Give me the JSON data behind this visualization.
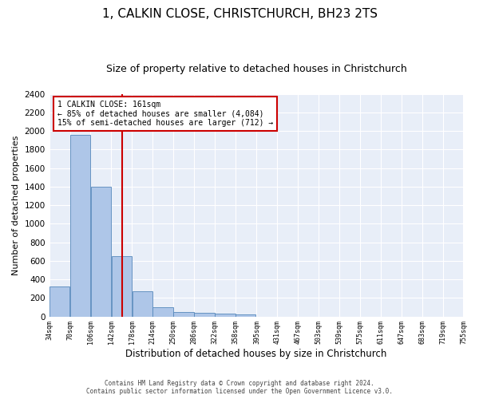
{
  "title1": "1, CALKIN CLOSE, CHRISTCHURCH, BH23 2TS",
  "title2": "Size of property relative to detached houses in Christchurch",
  "xlabel": "Distribution of detached houses by size in Christchurch",
  "ylabel": "Number of detached properties",
  "footer1": "Contains HM Land Registry data © Crown copyright and database right 2024.",
  "footer2": "Contains public sector information licensed under the Open Government Licence v3.0.",
  "annotation_line1": "1 CALKIN CLOSE: 161sqm",
  "annotation_line2": "← 85% of detached houses are smaller (4,084)",
  "annotation_line3": "15% of semi-detached houses are larger (712) →",
  "property_size": 161,
  "bar_edges": [
    34,
    70,
    106,
    142,
    178,
    214,
    250,
    286,
    322,
    358,
    395,
    431,
    467,
    503,
    539,
    575,
    611,
    647,
    683,
    719,
    755
  ],
  "bar_heights": [
    320,
    1960,
    1400,
    650,
    270,
    100,
    45,
    38,
    35,
    20,
    0,
    0,
    0,
    0,
    0,
    0,
    0,
    0,
    0,
    0
  ],
  "bar_color": "#aec6e8",
  "bar_edgecolor": "#5588bb",
  "vline_color": "#cc0000",
  "vline_x": 161,
  "annotation_box_color": "#cc0000",
  "ylim": [
    0,
    2400
  ],
  "yticks": [
    0,
    200,
    400,
    600,
    800,
    1000,
    1200,
    1400,
    1600,
    1800,
    2000,
    2200,
    2400
  ],
  "bg_color": "#e8eef8",
  "grid_color": "#ffffff",
  "title1_fontsize": 11,
  "title2_fontsize": 9,
  "annotation_fontsize": 7
}
